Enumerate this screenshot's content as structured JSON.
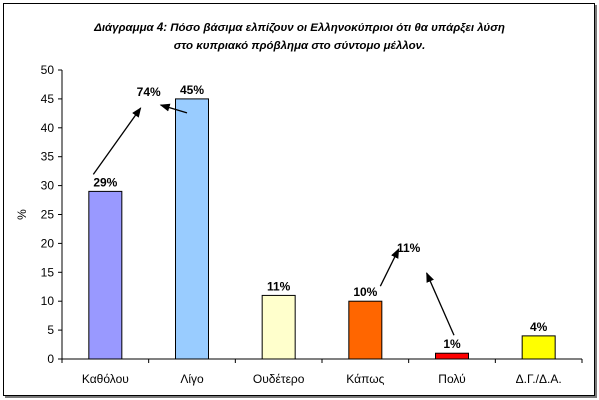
{
  "chart_data": {
    "type": "bar",
    "title_lines": [
      "Διάγραμμα 4: Πόσο βάσιμα ελπίζουν οι Ελληνοκύπριοι ότι θα υπάρξει λύση",
      "στο κυπριακό πρόβλημα στο σύντομο μέλλον."
    ],
    "ylabel": "%",
    "xlabel": "",
    "ylim": [
      0,
      50
    ],
    "yticks": [
      0,
      5,
      10,
      15,
      20,
      25,
      30,
      35,
      40,
      45,
      50
    ],
    "grid": false,
    "legend": "none",
    "categories": [
      "Καθόλου",
      "Λίγο",
      "Ουδέτερο",
      "Κάπως",
      "Πολύ",
      "Δ.Γ./Δ.Α."
    ],
    "values": [
      29,
      45,
      11,
      10,
      1,
      4
    ],
    "data_labels": [
      "29%",
      "45%",
      "11%",
      "10%",
      "1%",
      "4%"
    ],
    "colors": [
      "#9999ff",
      "#99ccff",
      "#ffffcc",
      "#ff6600",
      "#ff0000",
      "#ffff00"
    ],
    "annotations": [
      {
        "text": "74%",
        "x_cat": 0.5,
        "y": 45.5
      },
      {
        "text": "11%",
        "x_cat": 3.5,
        "y": 18.5
      }
    ]
  }
}
